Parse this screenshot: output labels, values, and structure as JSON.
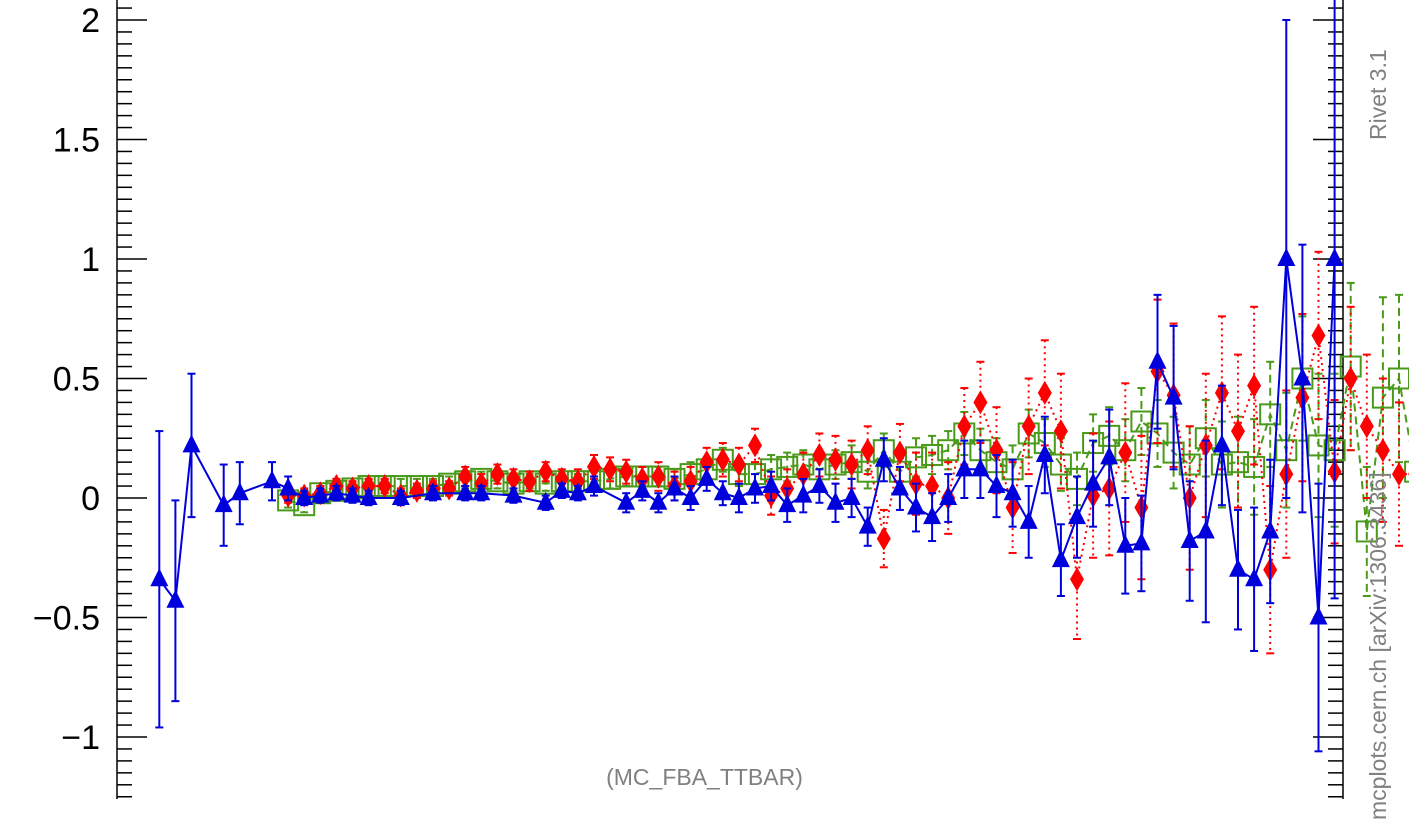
{
  "chart_data": {
    "type": "scatter",
    "ylim": [
      -1.25,
      2.1
    ],
    "yticks": [
      2,
      1.5,
      1,
      0.5,
      0,
      -0.5,
      -1
    ],
    "ytick_labels": [
      "2",
      "1.5",
      "1",
      "0.5",
      "0",
      "−0.5",
      "−1"
    ],
    "grid": false,
    "series": [
      {
        "marker": "square-open",
        "color": "#4a9a1a",
        "line": "dashed",
        "x": [
          1,
          2,
          3,
          4,
          5,
          6,
          7,
          8,
          9,
          10,
          11,
          12,
          13,
          14,
          15,
          16,
          17,
          18,
          19,
          20,
          21,
          22,
          23,
          24,
          25,
          26,
          27,
          28,
          29,
          30,
          31,
          32,
          33,
          34,
          35,
          36,
          37,
          38,
          39,
          40,
          41,
          42,
          43,
          44,
          45,
          46,
          47,
          48,
          49,
          50,
          51,
          52,
          53,
          54,
          55,
          56,
          57,
          58,
          59,
          60,
          61,
          62,
          63,
          64,
          65,
          66,
          67,
          68,
          69,
          70,
          71
        ],
        "y": [
          -0.01,
          -0.03,
          0.02,
          0.03,
          0.04,
          0.05,
          0.05,
          0.05,
          0.05,
          0.05,
          0.06,
          0.07,
          0.08,
          0.07,
          0.06,
          0.07,
          0.06,
          0.07,
          0.07,
          0.07,
          0.08,
          0.09,
          0.09,
          0.09,
          0.08,
          0.1,
          0.12,
          0.16,
          0.1,
          0.1,
          0.12,
          0.13,
          0.14,
          0.12,
          0.14,
          0.15,
          0.11,
          0.2,
          0.11,
          0.17,
          0.18,
          0.2,
          0.27,
          0.2,
          0.15,
          0.12,
          0.27,
          0.23,
          0.14,
          0.08,
          0.23,
          0.26,
          0.2,
          0.32,
          0.27,
          0.19,
          0.14,
          0.25,
          0.14,
          0.15,
          0.13,
          0.35,
          0.2,
          0.5,
          0.22,
          0.2,
          0.55,
          -0.14,
          0.42,
          0.5,
          0.11
        ],
        "err": [
          0.03,
          0.03,
          0.03,
          0.03,
          0.03,
          0.03,
          0.03,
          0.03,
          0.03,
          0.03,
          0.03,
          0.03,
          0.03,
          0.03,
          0.03,
          0.03,
          0.03,
          0.03,
          0.03,
          0.04,
          0.04,
          0.04,
          0.04,
          0.04,
          0.04,
          0.05,
          0.05,
          0.05,
          0.05,
          0.05,
          0.06,
          0.06,
          0.06,
          0.06,
          0.06,
          0.07,
          0.07,
          0.07,
          0.07,
          0.08,
          0.08,
          0.08,
          0.09,
          0.09,
          0.1,
          0.1,
          0.1,
          0.1,
          0.11,
          0.11,
          0.12,
          0.12,
          0.13,
          0.14,
          0.14,
          0.15,
          0.16,
          0.16,
          0.18,
          0.19,
          0.2,
          0.22,
          0.24,
          0.26,
          0.3,
          0.32,
          0.35,
          0.27,
          0.42,
          0.35,
          0.3
        ]
      },
      {
        "marker": "diamond-filled",
        "color": "#ff0000",
        "line": "dotted",
        "x": [
          1,
          2,
          3,
          4,
          5,
          6,
          7,
          8,
          9,
          10,
          11,
          12,
          13,
          14,
          15,
          16,
          17,
          18,
          19,
          20,
          21,
          22,
          23,
          24,
          25,
          26,
          27,
          28,
          29,
          30,
          31,
          32,
          33,
          34,
          35,
          36,
          37,
          38,
          39,
          40,
          41,
          42,
          43,
          44,
          45,
          46,
          47,
          48,
          49,
          50,
          51,
          52,
          53,
          54,
          55,
          56,
          57,
          58,
          59,
          60,
          61,
          62,
          63,
          64,
          65,
          66,
          67,
          68,
          69,
          70,
          71
        ],
        "y": [
          0.01,
          0.01,
          0.02,
          0.05,
          0.04,
          0.05,
          0.05,
          0.01,
          0.03,
          0.04,
          0.04,
          0.09,
          0.06,
          0.1,
          0.08,
          0.07,
          0.11,
          0.08,
          0.07,
          0.13,
          0.12,
          0.11,
          0.08,
          0.09,
          0.05,
          0.07,
          0.15,
          0.16,
          0.14,
          0.22,
          0.01,
          0.04,
          0.1,
          0.18,
          0.16,
          0.14,
          0.2,
          -0.17,
          0.19,
          0.06,
          0.05,
          0.0,
          0.3,
          0.4,
          0.2,
          -0.04,
          0.3,
          0.44,
          0.28,
          -0.34,
          0.01,
          0.04,
          0.19,
          -0.04,
          0.53,
          0.43,
          0.0,
          0.22,
          0.44,
          0.28,
          0.47,
          -0.3,
          0.1,
          0.42,
          0.68,
          0.11,
          0.5,
          0.3,
          0.2,
          0.1,
          0.1
        ],
        "err": [
          0.03,
          0.03,
          0.03,
          0.03,
          0.03,
          0.03,
          0.03,
          0.03,
          0.03,
          0.03,
          0.03,
          0.04,
          0.04,
          0.04,
          0.04,
          0.04,
          0.04,
          0.04,
          0.05,
          0.05,
          0.05,
          0.05,
          0.05,
          0.06,
          0.06,
          0.06,
          0.06,
          0.07,
          0.07,
          0.07,
          0.08,
          0.08,
          0.09,
          0.09,
          0.1,
          0.1,
          0.1,
          0.12,
          0.12,
          0.13,
          0.14,
          0.15,
          0.16,
          0.17,
          0.18,
          0.19,
          0.2,
          0.22,
          0.24,
          0.25,
          0.26,
          0.28,
          0.29,
          0.3,
          0.3,
          0.3,
          0.3,
          0.3,
          0.32,
          0.32,
          0.33,
          0.35,
          0.35,
          0.35,
          0.35,
          0.3,
          0.3,
          0.3,
          0.3,
          0.3,
          0.3
        ]
      },
      {
        "marker": "triangle-filled",
        "color": "#0000dd",
        "line": "solid",
        "x": [
          -7,
          -6,
          -5,
          -3,
          -2,
          0,
          1,
          2,
          3,
          4,
          5,
          6,
          8,
          10,
          12,
          13,
          15,
          17,
          18,
          19,
          20,
          22,
          23,
          24,
          25,
          26,
          27,
          28,
          29,
          30,
          31,
          32,
          33,
          34,
          35,
          36,
          37,
          38,
          39,
          40,
          41,
          42,
          43,
          44,
          45,
          46,
          47,
          48,
          49,
          50,
          51,
          52,
          53,
          54,
          55,
          56,
          57,
          58,
          59,
          60,
          61,
          62,
          63,
          64,
          65,
          66
        ],
        "y": [
          -0.34,
          -0.43,
          0.22,
          -0.03,
          0.02,
          0.07,
          0.04,
          0.0,
          0.01,
          0.02,
          0.01,
          0.0,
          0.0,
          0.02,
          0.02,
          0.02,
          0.01,
          -0.02,
          0.03,
          0.02,
          0.05,
          -0.02,
          0.03,
          -0.02,
          0.04,
          0.0,
          0.08,
          0.02,
          0.0,
          0.04,
          0.05,
          -0.03,
          0.01,
          0.05,
          -0.02,
          0.0,
          -0.12,
          0.16,
          0.04,
          -0.04,
          -0.08,
          0.0,
          0.12,
          0.12,
          0.05,
          0.02,
          -0.1,
          0.18,
          -0.26,
          -0.08,
          0.06,
          0.17,
          -0.2,
          -0.19,
          0.57,
          0.42,
          -0.18,
          -0.14,
          0.22,
          -0.3,
          -0.34,
          -0.14,
          1.0,
          0.5,
          -0.5,
          1.0
        ],
        "err": [
          0.62,
          0.42,
          0.3,
          0.17,
          0.13,
          0.08,
          0.05,
          0.03,
          0.03,
          0.03,
          0.03,
          0.03,
          0.03,
          0.03,
          0.03,
          0.03,
          0.03,
          0.03,
          0.03,
          0.03,
          0.04,
          0.04,
          0.04,
          0.04,
          0.05,
          0.05,
          0.05,
          0.05,
          0.06,
          0.06,
          0.06,
          0.07,
          0.07,
          0.07,
          0.08,
          0.08,
          0.08,
          0.09,
          0.09,
          0.1,
          0.1,
          0.1,
          0.12,
          0.12,
          0.13,
          0.14,
          0.15,
          0.16,
          0.15,
          0.17,
          0.18,
          0.2,
          0.2,
          0.2,
          0.28,
          0.3,
          0.25,
          0.38,
          0.25,
          0.25,
          0.3,
          0.3,
          1.0,
          0.56,
          0.56,
          1.42
        ]
      }
    ]
  },
  "labels": {
    "analysis": "(MC_FBA_TTBAR)",
    "rivet": "Rivet 3.1",
    "mcplots": "mcplots.cern.ch [arXiv:1306.3436]"
  }
}
